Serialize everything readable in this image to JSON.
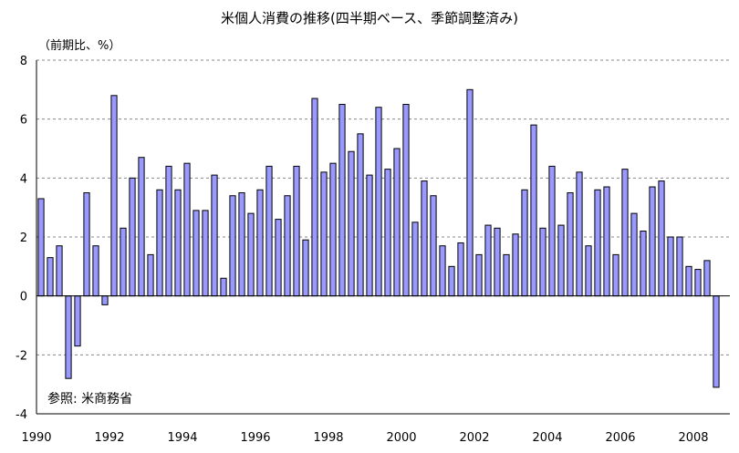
{
  "chart_data": {
    "type": "bar",
    "title": "米個人消費の推移(四半期ベース、季節調整済み)",
    "unit_label": "（前期比、%）",
    "source_note": "参照: 米商務省",
    "ylim": [
      -4,
      8
    ],
    "yticks": [
      -4,
      -2,
      0,
      2,
      4,
      6,
      8
    ],
    "x_tick_labels": [
      "1990",
      "1992",
      "1994",
      "1996",
      "1998",
      "2000",
      "2002",
      "2004",
      "2006",
      "2008"
    ],
    "grid": true,
    "start": "1990Q1",
    "series": [
      {
        "values": [
          3.3,
          1.3,
          1.7,
          -2.8,
          -1.7,
          3.5,
          1.7,
          -0.3,
          6.8,
          2.3,
          4.0,
          4.7,
          1.4,
          3.6,
          4.4,
          3.6,
          4.5,
          2.9,
          2.9,
          4.1,
          0.6,
          3.4,
          3.5,
          2.8,
          3.6,
          4.4,
          2.6,
          3.4,
          4.4,
          1.9,
          6.7,
          4.2,
          4.5,
          6.5,
          4.9,
          5.5,
          4.1,
          6.4,
          4.3,
          5.0,
          6.5,
          2.5,
          3.9,
          3.4,
          1.7,
          1.0,
          1.8,
          7.0,
          1.4,
          2.4,
          2.3,
          1.4,
          2.1,
          3.6,
          5.8,
          2.3,
          4.4,
          2.4,
          3.5,
          4.2,
          1.7,
          3.6,
          3.7,
          1.4,
          4.3,
          2.8,
          2.2,
          3.7,
          3.9,
          2.0,
          2.0,
          1.0,
          0.9,
          1.2,
          -3.1
        ]
      }
    ]
  }
}
